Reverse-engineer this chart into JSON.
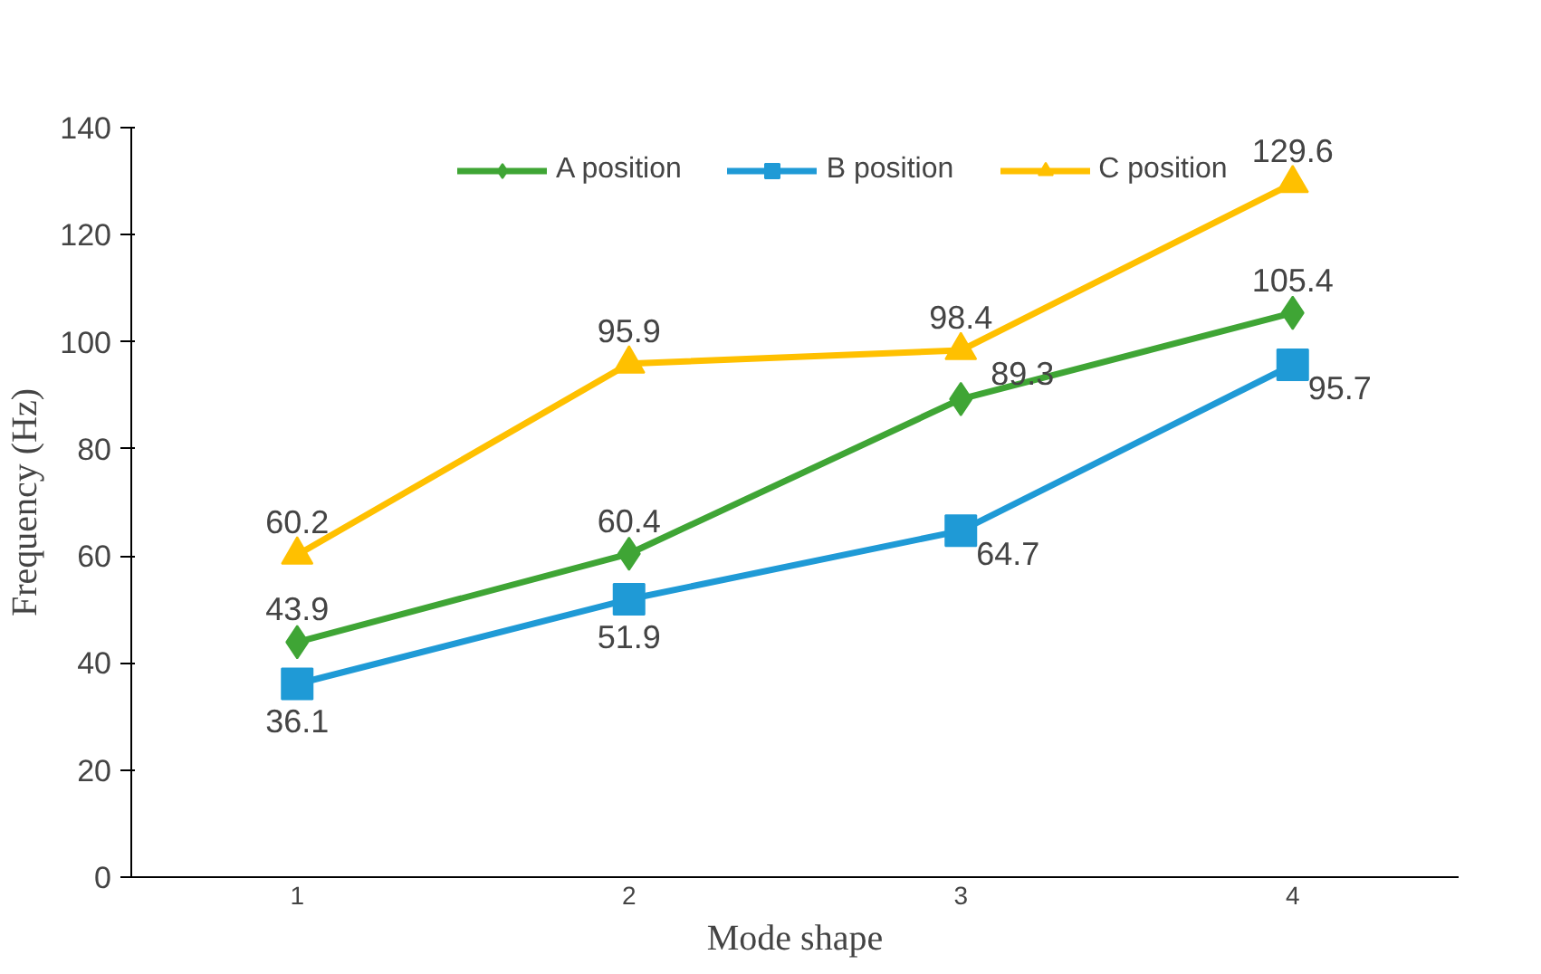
{
  "chart_data": {
    "type": "line",
    "xlabel": "Mode shape",
    "ylabel": "Frequency (Hz)",
    "categories": [
      "1",
      "2",
      "3",
      "4"
    ],
    "series": [
      {
        "name": "A position",
        "color": "#3fa535",
        "values": [
          43.9,
          60.4,
          89.3,
          105.4
        ],
        "marker": "diamond"
      },
      {
        "name": "B position",
        "color": "#1f9ad6",
        "values": [
          36.1,
          51.9,
          64.7,
          95.7
        ],
        "marker": "square"
      },
      {
        "name": "C position",
        "color": "#ffc000",
        "values": [
          60.2,
          95.9,
          98.4,
          129.6
        ],
        "marker": "triangle"
      }
    ],
    "ylim": [
      0,
      140
    ],
    "yticks": [
      0,
      20,
      40,
      60,
      80,
      100,
      120,
      140
    ],
    "grid": false,
    "legend": "top",
    "data_labels": true,
    "line_style": "solid"
  }
}
